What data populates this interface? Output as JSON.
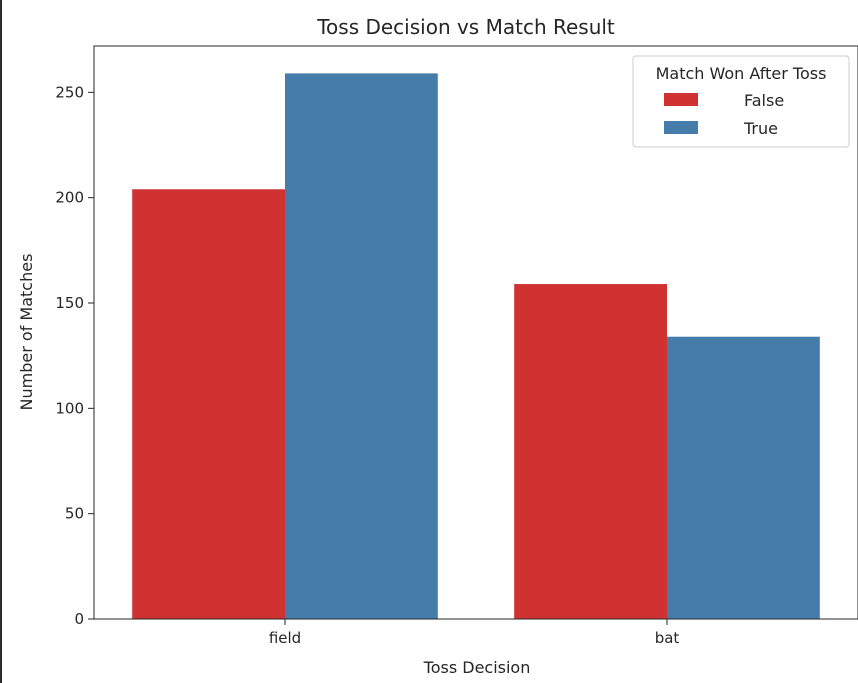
{
  "chart_data": {
    "type": "bar",
    "title": "Toss Decision vs Match Result",
    "xlabel": "Toss Decision",
    "ylabel": "Number of Matches",
    "categories": [
      "field",
      "bat"
    ],
    "series": [
      {
        "name": "False",
        "values": [
          204,
          159
        ],
        "color": "#d03232"
      },
      {
        "name": "True",
        "values": [
          259,
          134
        ],
        "color": "#467caa"
      }
    ],
    "ylim": [
      0,
      272
    ],
    "yticks": [
      0,
      50,
      100,
      150,
      200,
      250
    ],
    "grid": false,
    "legend": {
      "title": "Match Won After Toss",
      "placement": "top-right"
    }
  }
}
